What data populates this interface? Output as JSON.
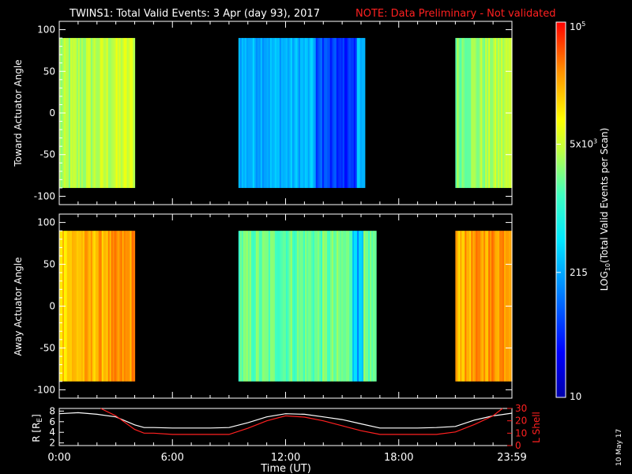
{
  "header": {
    "title": "TWINS1: Total Valid Events:  3 Apr (day  93), 2017",
    "note": "NOTE: Data Preliminary - Not validated",
    "note_color": "#ff2020"
  },
  "footer": {
    "date_stamp": "10 May 17"
  },
  "chart_data": [
    {
      "type": "heatmap",
      "ylabel": "Toward Actuator Angle",
      "ylim": [
        -110,
        110
      ],
      "yticks": [
        "100",
        "50",
        "0",
        "-50",
        "-100"
      ],
      "ytick_values": [
        100,
        50,
        0,
        -50,
        -100
      ],
      "angle_range": [
        -90,
        90
      ],
      "data_blocks_hours": [
        [
          0,
          4
        ],
        [
          9.5,
          16.2
        ],
        [
          21,
          24
        ]
      ],
      "typical_log10_level_by_block": [
        3.5,
        2.4,
        3.4
      ],
      "units": "log10 total valid events per scan"
    },
    {
      "type": "heatmap",
      "ylabel": "Away Actuator Angle",
      "ylim": [
        -110,
        110
      ],
      "yticks": [
        "100",
        "50",
        "0",
        "-50",
        "-100"
      ],
      "ytick_values": [
        100,
        50,
        0,
        -50,
        -100
      ],
      "angle_range": [
        -90,
        90
      ],
      "data_blocks_hours": [
        [
          0,
          4
        ],
        [
          9.5,
          16.8
        ],
        [
          21,
          24
        ]
      ],
      "typical_log10_level_by_block": [
        4.2,
        3.3,
        4.3
      ],
      "units": "log10 total valid events per scan"
    },
    {
      "type": "line",
      "ylabel_left": "R [R",
      "ylabel_left_sub": "E",
      "ylabel_left_close": "]",
      "ylabel_right": "L Shell",
      "xlabel": "Time (UT)",
      "xticks": [
        "0:00",
        "6:00",
        "12:00",
        "18:00",
        "23:59"
      ],
      "xtick_values": [
        0,
        6,
        12,
        18,
        24
      ],
      "left_yticks": [
        "8",
        "6",
        "4",
        "2"
      ],
      "left_ytick_values": [
        8,
        6,
        4,
        2
      ],
      "left_ylim": [
        1.5,
        8.5
      ],
      "right_yticks": [
        "30",
        "20",
        "10",
        "0"
      ],
      "right_ytick_values": [
        30,
        20,
        10,
        0
      ],
      "right_ylim": [
        0,
        30
      ],
      "series": [
        {
          "axis": "left",
          "color": "#ffffff",
          "x": [
            0,
            1,
            2,
            3,
            4,
            4.5,
            5,
            6,
            7,
            8,
            9,
            10,
            11,
            12,
            13,
            14,
            15,
            16,
            17,
            18,
            19,
            20,
            21,
            22,
            23,
            24
          ],
          "y": [
            7.5,
            7.7,
            7.4,
            6.9,
            5.4,
            4.9,
            4.9,
            4.8,
            4.8,
            4.8,
            4.9,
            5.8,
            6.9,
            7.5,
            7.4,
            6.9,
            6.4,
            5.6,
            4.8,
            4.8,
            4.8,
            4.9,
            5.1,
            6.3,
            7.1,
            7.6
          ]
        },
        {
          "axis": "right",
          "color": "#ff2020",
          "x": [
            2.2,
            3,
            4,
            4.5,
            5,
            6,
            7,
            8,
            9,
            10,
            11,
            12,
            13,
            14,
            15,
            16,
            17,
            18,
            19,
            20,
            21,
            22,
            23,
            23.5
          ],
          "y": [
            30,
            24,
            13,
            10,
            10,
            9,
            9,
            9,
            9,
            14,
            20,
            24,
            23,
            20,
            16,
            12,
            9,
            9,
            9,
            9,
            11,
            17,
            24,
            30
          ]
        }
      ]
    },
    {
      "type": "colorbar",
      "label": "LOG",
      "label_sub": "10",
      "label_rest": "(Total Valid Events per Scan)",
      "range_log10": [
        1,
        5
      ],
      "ticks": [
        {
          "log10": 5,
          "text": "10",
          "sup": "5"
        },
        {
          "log10": 3.699,
          "text": "5x10",
          "sup": "3"
        },
        {
          "log10": 2.332,
          "text": "215",
          "sup": ""
        },
        {
          "log10": 1,
          "text": "10",
          "sup": ""
        }
      ]
    }
  ]
}
